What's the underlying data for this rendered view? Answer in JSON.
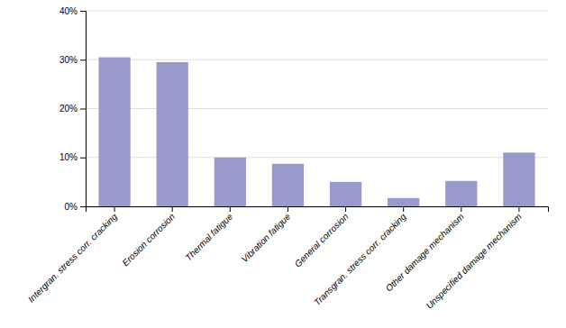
{
  "chart_data": {
    "type": "bar",
    "categories": [
      "Intergran. stress corr. cracking",
      "Erosion corrosion",
      "Thermal fatigue",
      "Vibration fatigue",
      "General corrosion",
      "Transgran. stress corr. cracking",
      "Other damage mechanism",
      "Unspecified damage mechanism"
    ],
    "values": [
      30.5,
      29.5,
      10.0,
      8.7,
      5.0,
      1.7,
      5.2,
      11.0
    ],
    "color": "#9999cc",
    "ylim": [
      0,
      40
    ],
    "yticks": [
      {
        "value": 0,
        "label": "0%"
      },
      {
        "value": 10,
        "label": "10%"
      },
      {
        "value": 20,
        "label": "20%"
      },
      {
        "value": 30,
        "label": "30%"
      },
      {
        "value": 40,
        "label": "40%"
      }
    ],
    "grid": true
  }
}
